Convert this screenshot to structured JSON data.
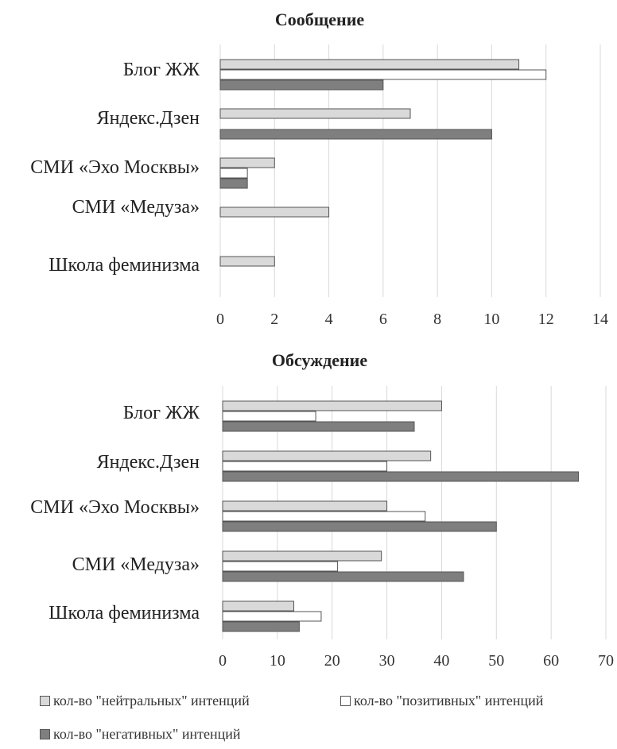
{
  "chart_data": [
    {
      "type": "bar",
      "orientation": "horizontal",
      "title": "Сообщение",
      "categories": [
        "Блог ЖЖ",
        "Яндекс.Дзен",
        "СМИ «Эхо Москвы»",
        "СМИ «Медуза»",
        "Школа феминизма"
      ],
      "series": [
        {
          "name": "кол-во \"нейтральных\" интенций",
          "color": "#d9d9d9",
          "values": [
            11,
            7,
            2,
            4,
            2
          ]
        },
        {
          "name": "кол-во \"позитивных\" интенций",
          "color": "#ffffff",
          "values": [
            12,
            0,
            1,
            0,
            0
          ]
        },
        {
          "name": "кол-во \"негативных\" интенций",
          "color": "#7f7f7f",
          "values": [
            6,
            10,
            1,
            0,
            0
          ]
        }
      ],
      "xlim": [
        0,
        14
      ],
      "xticks": [
        0,
        2,
        4,
        6,
        8,
        10,
        12,
        14
      ],
      "grid": true
    },
    {
      "type": "bar",
      "orientation": "horizontal",
      "title": "Обсуждение",
      "categories": [
        "Блог ЖЖ",
        "Яндекс.Дзен",
        "СМИ «Эхо Москвы»",
        "СМИ «Медуза»",
        "Школа феминизма"
      ],
      "series": [
        {
          "name": "кол-во \"нейтральных\" интенций",
          "color": "#d9d9d9",
          "values": [
            40,
            38,
            30,
            29,
            13
          ]
        },
        {
          "name": "кол-во \"позитивных\" интенций",
          "color": "#ffffff",
          "values": [
            17,
            30,
            37,
            21,
            18
          ]
        },
        {
          "name": "кол-во \"негативных\" интенций",
          "color": "#7f7f7f",
          "values": [
            35,
            65,
            50,
            44,
            14
          ]
        }
      ],
      "xlim": [
        0,
        70
      ],
      "xticks": [
        0,
        10,
        20,
        30,
        40,
        50,
        60,
        70
      ],
      "grid": true
    }
  ],
  "legend": {
    "placement": "bottom",
    "items": [
      {
        "label": "кол-во \"нейтральных\" интенций",
        "color": "#d9d9d9"
      },
      {
        "label": "кол-во \"позитивных\" интенций",
        "color": "#ffffff"
      },
      {
        "label": "кол-во \"негативных\" интенций",
        "color": "#7f7f7f"
      }
    ]
  }
}
